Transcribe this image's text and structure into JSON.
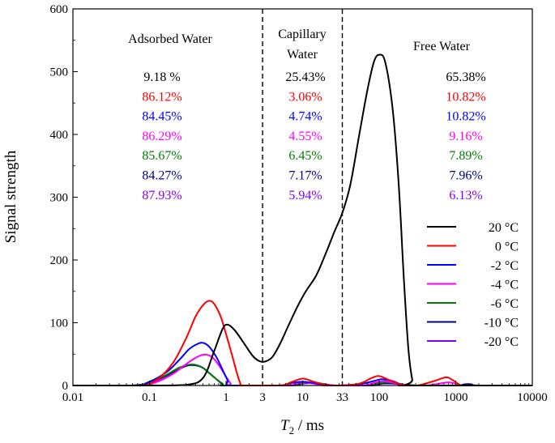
{
  "chart_data": {
    "type": "line",
    "xscale": "log",
    "xlim": [
      0.01,
      10000
    ],
    "ylim": [
      0,
      600
    ],
    "xlabel": {
      "main": "T",
      "sub": "2",
      "unit": " / ms"
    },
    "ylabel": "Signal strength",
    "x_ticks": [
      {
        "value": 0.01,
        "label": "0.01"
      },
      {
        "value": 0.1,
        "label": "0.1"
      },
      {
        "value": 1,
        "label": "1"
      },
      {
        "value": 3,
        "label": "3"
      },
      {
        "value": 10,
        "label": "10"
      },
      {
        "value": 33,
        "label": "33"
      },
      {
        "value": 100,
        "label": "100"
      },
      {
        "value": 1000,
        "label": "1000"
      },
      {
        "value": 10000,
        "label": "10000"
      }
    ],
    "y_ticks": [
      0,
      100,
      200,
      300,
      400,
      500,
      600
    ],
    "y_tick_labels": [
      "0",
      "100",
      "200",
      "300",
      "400",
      "500",
      "600"
    ],
    "boundaries": [
      3,
      33
    ],
    "regions": [
      {
        "label_lines": [
          "Adsorbed Water"
        ],
        "x": 1
      },
      {
        "label_lines": [
          "Capillary",
          "Water"
        ],
        "x": 2
      },
      {
        "label_lines": [
          "Free Water"
        ],
        "x": 3
      }
    ],
    "series": [
      {
        "name": "20 °C",
        "color": "#000000",
        "points": [
          [
            0.01,
            0
          ],
          [
            0.1,
            0
          ],
          [
            0.3,
            1
          ],
          [
            0.5,
            12
          ],
          [
            0.7,
            55
          ],
          [
            0.9,
            90
          ],
          [
            1.05,
            97
          ],
          [
            1.3,
            88
          ],
          [
            1.7,
            68
          ],
          [
            2.2,
            48
          ],
          [
            2.7,
            39
          ],
          [
            3.2,
            38
          ],
          [
            4,
            45
          ],
          [
            5,
            65
          ],
          [
            6.5,
            95
          ],
          [
            8.5,
            125
          ],
          [
            11,
            150
          ],
          [
            15,
            175
          ],
          [
            20,
            210
          ],
          [
            26,
            245
          ],
          [
            33,
            275
          ],
          [
            42,
            320
          ],
          [
            55,
            400
          ],
          [
            70,
            470
          ],
          [
            85,
            515
          ],
          [
            100,
            527
          ],
          [
            120,
            515
          ],
          [
            150,
            440
          ],
          [
            180,
            320
          ],
          [
            210,
            170
          ],
          [
            240,
            60
          ],
          [
            270,
            10
          ],
          [
            300,
            0
          ],
          [
            10000,
            0
          ]
        ],
        "shares": {
          "adsorbed": "9.18 %",
          "capillary": "25.43%",
          "free": "65.38%"
        }
      },
      {
        "name": "0 °C",
        "color": "#ff0000",
        "points": [
          [
            0.01,
            0
          ],
          [
            0.07,
            0
          ],
          [
            0.12,
            8
          ],
          [
            0.2,
            35
          ],
          [
            0.3,
            75
          ],
          [
            0.4,
            110
          ],
          [
            0.5,
            128
          ],
          [
            0.6,
            135
          ],
          [
            0.7,
            130
          ],
          [
            0.85,
            110
          ],
          [
            1,
            82
          ],
          [
            1.2,
            48
          ],
          [
            1.4,
            18
          ],
          [
            1.55,
            2
          ],
          [
            1.6,
            0
          ],
          [
            5,
            0
          ],
          [
            7,
            5
          ],
          [
            10,
            11
          ],
          [
            14,
            6
          ],
          [
            20,
            1
          ],
          [
            30,
            0
          ],
          [
            55,
            3
          ],
          [
            80,
            12
          ],
          [
            100,
            15
          ],
          [
            140,
            8
          ],
          [
            200,
            1
          ],
          [
            300,
            0
          ],
          [
            400,
            3
          ],
          [
            550,
            8
          ],
          [
            750,
            13
          ],
          [
            900,
            9
          ],
          [
            1100,
            2
          ],
          [
            1300,
            0
          ],
          [
            10000,
            0
          ]
        ],
        "shares": {
          "adsorbed": "86.12%",
          "capillary": "3.06%",
          "free": "10.82%"
        }
      },
      {
        "name": "-2 °C",
        "color": "#0000ff",
        "points": [
          [
            0.01,
            0
          ],
          [
            0.06,
            0
          ],
          [
            0.1,
            6
          ],
          [
            0.17,
            22
          ],
          [
            0.25,
            42
          ],
          [
            0.33,
            58
          ],
          [
            0.42,
            66
          ],
          [
            0.5,
            68
          ],
          [
            0.6,
            62
          ],
          [
            0.75,
            45
          ],
          [
            0.9,
            25
          ],
          [
            1.05,
            8
          ],
          [
            1.15,
            0
          ],
          [
            5,
            0
          ],
          [
            7,
            4
          ],
          [
            10,
            6
          ],
          [
            14,
            4
          ],
          [
            20,
            1
          ],
          [
            30,
            0
          ],
          [
            60,
            3
          ],
          [
            90,
            8
          ],
          [
            110,
            10
          ],
          [
            150,
            7
          ],
          [
            200,
            1
          ],
          [
            250,
            0
          ],
          [
            10000,
            0
          ]
        ],
        "shares": {
          "adsorbed": "84.45%",
          "capillary": "4.74%",
          "free": "10.82%"
        }
      },
      {
        "name": "-4 °C",
        "color": "#ff00ff",
        "points": [
          [
            0.01,
            0
          ],
          [
            0.07,
            0
          ],
          [
            0.12,
            5
          ],
          [
            0.2,
            18
          ],
          [
            0.3,
            34
          ],
          [
            0.4,
            44
          ],
          [
            0.5,
            49
          ],
          [
            0.6,
            48
          ],
          [
            0.7,
            42
          ],
          [
            0.85,
            28
          ],
          [
            1,
            14
          ],
          [
            1.15,
            3
          ],
          [
            1.25,
            0
          ],
          [
            6,
            0
          ],
          [
            8,
            3
          ],
          [
            10,
            5
          ],
          [
            14,
            3
          ],
          [
            20,
            0
          ],
          [
            60,
            0
          ],
          [
            90,
            5
          ],
          [
            120,
            7
          ],
          [
            160,
            4
          ],
          [
            220,
            1
          ],
          [
            400,
            0
          ],
          [
            600,
            3
          ],
          [
            800,
            5
          ],
          [
            1000,
            3
          ],
          [
            1300,
            0
          ],
          [
            10000,
            0
          ]
        ],
        "shares": {
          "adsorbed": "86.29%",
          "capillary": "4.55%",
          "free": "9.16%"
        }
      },
      {
        "name": "-6 °C",
        "color": "#008000",
        "points": [
          [
            0.01,
            0
          ],
          [
            0.06,
            0
          ],
          [
            0.1,
            5
          ],
          [
            0.16,
            16
          ],
          [
            0.24,
            28
          ],
          [
            0.32,
            33
          ],
          [
            0.4,
            33
          ],
          [
            0.5,
            28
          ],
          [
            0.6,
            20
          ],
          [
            0.75,
            10
          ],
          [
            0.9,
            3
          ],
          [
            1,
            0
          ],
          [
            6,
            0
          ],
          [
            9,
            3
          ],
          [
            13,
            5
          ],
          [
            18,
            3
          ],
          [
            25,
            0
          ],
          [
            70,
            0
          ],
          [
            100,
            4
          ],
          [
            140,
            5
          ],
          [
            200,
            2
          ],
          [
            280,
            0
          ],
          [
            10000,
            0
          ]
        ],
        "shares": {
          "adsorbed": "85.67%",
          "capillary": "6.45%",
          "free": "7.89%"
        }
      },
      {
        "name": "-10 °C",
        "color": "#000080",
        "points": [
          [
            0.01,
            0
          ],
          [
            0.06,
            0
          ],
          [
            0.1,
            5
          ],
          [
            0.16,
            15
          ],
          [
            0.24,
            26
          ],
          [
            0.32,
            32
          ],
          [
            0.4,
            32
          ],
          [
            0.5,
            28
          ],
          [
            0.6,
            20
          ],
          [
            0.75,
            10
          ],
          [
            0.9,
            2
          ],
          [
            1,
            0
          ],
          [
            6,
            0
          ],
          [
            9,
            3
          ],
          [
            12,
            4
          ],
          [
            16,
            3
          ],
          [
            22,
            0
          ],
          [
            70,
            0
          ],
          [
            100,
            3
          ],
          [
            140,
            4
          ],
          [
            200,
            2
          ],
          [
            300,
            0
          ],
          [
            1000,
            0
          ],
          [
            1300,
            2
          ],
          [
            1600,
            2
          ],
          [
            2000,
            0
          ],
          [
            10000,
            0
          ]
        ],
        "shares": {
          "adsorbed": "84.27%",
          "capillary": "7.17%",
          "free": "7.96%"
        }
      },
      {
        "name": "-20 °C",
        "color": "#7f00ff",
        "points": [
          [
            0.01,
            0
          ],
          [
            0.06,
            0
          ],
          [
            0.1,
            4
          ],
          [
            0.16,
            14
          ],
          [
            0.24,
            26
          ],
          [
            0.32,
            32
          ],
          [
            0.42,
            32
          ],
          [
            0.5,
            28
          ],
          [
            0.6,
            20
          ],
          [
            0.75,
            10
          ],
          [
            0.9,
            2
          ],
          [
            1,
            0
          ],
          [
            7,
            0
          ],
          [
            10,
            3
          ],
          [
            14,
            4
          ],
          [
            20,
            2
          ],
          [
            28,
            0
          ],
          [
            80,
            0
          ],
          [
            110,
            3
          ],
          [
            150,
            3
          ],
          [
            220,
            1
          ],
          [
            320,
            0
          ],
          [
            10000,
            0
          ]
        ],
        "shares": {
          "adsorbed": "87.93%",
          "capillary": "5.94%",
          "free": "6.13%"
        }
      }
    ]
  }
}
